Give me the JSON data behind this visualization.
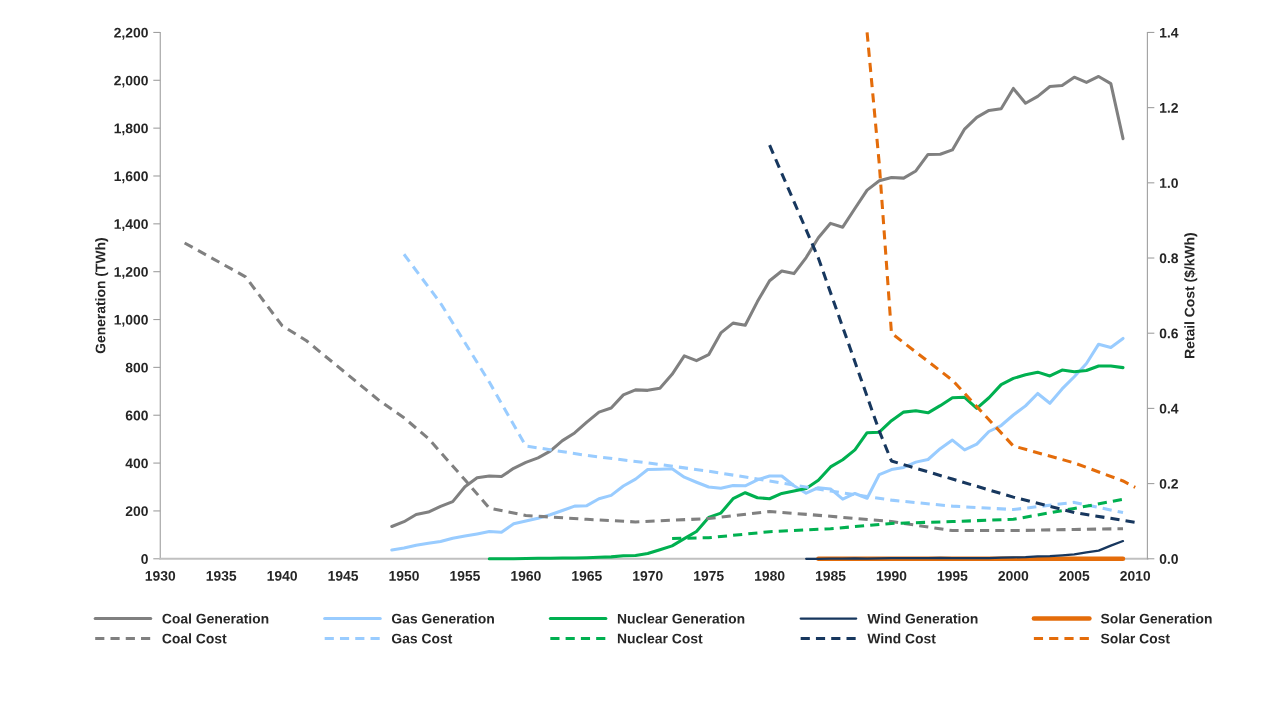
{
  "chart_data": {
    "type": "line",
    "ylabel": "Generation (TWh)",
    "y2label": "Retail Cost ($/kWh)",
    "xlim": [
      1930,
      2011
    ],
    "xticks": [
      1930,
      1935,
      1940,
      1945,
      1950,
      1955,
      1960,
      1965,
      1970,
      1975,
      1980,
      1985,
      1990,
      1995,
      2000,
      2005,
      2010
    ],
    "ylim": [
      0,
      2200
    ],
    "yticks": [
      0,
      200,
      400,
      600,
      800,
      {
        "value": 1000,
        "label": "1,000"
      },
      {
        "value": 1200,
        "label": "1,200"
      },
      {
        "value": 1400,
        "label": "1,400"
      },
      {
        "value": 1600,
        "label": "1,600"
      },
      {
        "value": 1800,
        "label": "1,800"
      },
      {
        "value": 2000,
        "label": "2,000"
      },
      {
        "value": 2200,
        "label": "2,200"
      }
    ],
    "y2lim": [
      0,
      1.4
    ],
    "y2ticks": [
      {
        "value": 0,
        "label": "0.0"
      },
      0.2,
      0.4,
      0.6,
      0.8,
      {
        "value": 1,
        "label": "1.0"
      },
      1.2,
      1.4
    ],
    "grid": false,
    "legend": "bottom",
    "series": [
      {
        "name": "Coal Generation",
        "color": "#808080",
        "line_style": "solid",
        "x": [
          1949,
          1950,
          1951,
          1952,
          1953,
          1954,
          1955,
          1956,
          1957,
          1958,
          1959,
          1960,
          1961,
          1962,
          1963,
          1964,
          1965,
          1966,
          1967,
          1968,
          1969,
          1970,
          1971,
          1972,
          1973,
          1974,
          1975,
          1976,
          1977,
          1978,
          1979,
          1980,
          1981,
          1982,
          1983,
          1984,
          1985,
          1986,
          1987,
          1988,
          1989,
          1990,
          1991,
          1992,
          1993,
          1994,
          1995,
          1996,
          1997,
          1998,
          1999,
          2000,
          2001,
          2002,
          2003,
          2004,
          2005,
          2006,
          2007,
          2008,
          2009
        ],
        "values": [
          135,
          155,
          185,
          195,
          219,
          239,
          301,
          339,
          346,
          344,
          378,
          403,
          422,
          450,
          494,
          526,
          571,
          613,
          630,
          685,
          706,
          704,
          713,
          771,
          848,
          828,
          853,
          944,
          985,
          976,
          1075,
          1162,
          1203,
          1192,
          1259,
          1342,
          1402,
          1386,
          1464,
          1541,
          1580,
          1594,
          1591,
          1621,
          1690,
          1691,
          1709,
          1796,
          1845,
          1874,
          1881,
          1966,
          1904,
          1933,
          1974,
          1978,
          2013,
          1991,
          2016,
          1986,
          1756
        ]
      },
      {
        "name": "Gas Generation",
        "color": "#99ccff",
        "line_style": "solid",
        "x": [
          1949,
          1950,
          1951,
          1952,
          1953,
          1954,
          1955,
          1956,
          1957,
          1958,
          1959,
          1960,
          1961,
          1962,
          1963,
          1964,
          1965,
          1966,
          1967,
          1968,
          1969,
          1970,
          1971,
          1972,
          1973,
          1974,
          1975,
          1976,
          1977,
          1978,
          1979,
          1980,
          1981,
          1982,
          1983,
          1984,
          1985,
          1986,
          1987,
          1988,
          1989,
          1990,
          1991,
          1992,
          1993,
          1994,
          1995,
          1996,
          1997,
          1998,
          1999,
          2000,
          2001,
          2002,
          2003,
          2004,
          2005,
          2006,
          2007,
          2008,
          2009
        ],
        "values": [
          37,
          45,
          57,
          65,
          72,
          86,
          95,
          104,
          114,
          111,
          146,
          158,
          169,
          184,
          202,
          220,
          222,
          251,
          265,
          304,
          333,
          373,
          374,
          376,
          341,
          320,
          300,
          295,
          306,
          305,
          330,
          346,
          346,
          305,
          274,
          297,
          292,
          249,
          273,
          253,
          352,
          373,
          382,
          404,
          415,
          460,
          496,
          455,
          479,
          532,
          557,
          601,
          639,
          691,
          650,
          710,
          761,
          816,
          897,
          883,
          921
        ]
      },
      {
        "name": "Nuclear Generation",
        "color": "#00b050",
        "line_style": "solid",
        "x": [
          1957,
          1958,
          1959,
          1960,
          1961,
          1962,
          1963,
          1964,
          1965,
          1966,
          1967,
          1968,
          1969,
          1970,
          1971,
          1972,
          1973,
          1974,
          1975,
          1976,
          1977,
          1978,
          1979,
          1980,
          1981,
          1982,
          1983,
          1984,
          1985,
          1986,
          1987,
          1988,
          1989,
          1990,
          1991,
          1992,
          1993,
          1994,
          1995,
          1996,
          1997,
          1998,
          1999,
          2000,
          2001,
          2002,
          2003,
          2004,
          2005,
          2006,
          2007,
          2008,
          2009
        ],
        "values": [
          0,
          0,
          0,
          1,
          2,
          2,
          3,
          3,
          4,
          6,
          8,
          13,
          14,
          22,
          38,
          54,
          84,
          114,
          173,
          191,
          251,
          276,
          255,
          251,
          273,
          283,
          294,
          328,
          384,
          414,
          455,
          527,
          529,
          577,
          613,
          619,
          610,
          640,
          673,
          675,
          629,
          673,
          728,
          754,
          769,
          780,
          764,
          789,
          782,
          787,
          806,
          806,
          799
        ]
      },
      {
        "name": "Wind Generation",
        "color": "#17375e",
        "line_style": "solid",
        "x": [
          1983,
          1984,
          1985,
          1986,
          1987,
          1988,
          1989,
          1990,
          1991,
          1992,
          1993,
          1994,
          1995,
          1996,
          1997,
          1998,
          1999,
          2000,
          2001,
          2002,
          2003,
          2004,
          2005,
          2006,
          2007,
          2008,
          2009
        ],
        "values": [
          0,
          0,
          1,
          1,
          2,
          1,
          2,
          3,
          3,
          3,
          3,
          4,
          3,
          3,
          3,
          3,
          5,
          6,
          7,
          10,
          11,
          14,
          18,
          27,
          34,
          55,
          74
        ]
      },
      {
        "name": "Solar Generation",
        "color": "#e46c0a",
        "line_style": "solid",
        "x": [
          1984,
          1985,
          1986,
          1987,
          1988,
          1989,
          1990,
          1991,
          1992,
          1993,
          1994,
          1995,
          1996,
          1997,
          1998,
          1999,
          2000,
          2001,
          2002,
          2003,
          2004,
          2005,
          2006,
          2007,
          2008,
          2009
        ],
        "values": [
          0,
          0,
          0,
          0,
          0,
          0,
          0,
          0,
          0,
          0,
          0,
          0,
          0,
          0,
          0,
          0,
          0,
          0,
          0,
          0,
          0,
          0,
          0,
          0,
          0,
          0
        ]
      },
      {
        "name": "Coal Cost",
        "color": "#808080",
        "line_style": "dashed",
        "axis": "y2",
        "x": [
          1932,
          1937,
          1940,
          1942,
          1945,
          1948,
          1950,
          1952,
          1955,
          1957,
          1960,
          1965,
          1969,
          1975,
          1980,
          1985,
          1990,
          1995,
          2000,
          2005,
          2009
        ],
        "values": [
          0.84,
          0.75,
          0.62,
          0.58,
          0.5,
          0.42,
          0.375,
          0.32,
          0.21,
          0.135,
          0.115,
          0.105,
          0.098,
          0.107,
          0.126,
          0.113,
          0.099,
          0.075,
          0.075,
          0.078,
          0.08
        ]
      },
      {
        "name": "Gas Cost",
        "color": "#99ccff",
        "line_style": "dashed",
        "axis": "y2",
        "x": [
          1950,
          1953,
          1957,
          1960,
          1965,
          1970,
          1975,
          1980,
          1985,
          1990,
          1995,
          2000,
          2005,
          2009
        ],
        "values": [
          0.81,
          0.68,
          0.47,
          0.3,
          0.275,
          0.255,
          0.233,
          0.207,
          0.18,
          0.156,
          0.14,
          0.131,
          0.15,
          0.123
        ]
      },
      {
        "name": "Nuclear Cost",
        "color": "#00b050",
        "line_style": "dashed",
        "axis": "y2",
        "x": [
          1972,
          1975,
          1980,
          1985,
          1990,
          1995,
          2000,
          2005,
          2009
        ],
        "values": [
          0.054,
          0.056,
          0.072,
          0.08,
          0.094,
          0.099,
          0.105,
          0.134,
          0.158
        ]
      },
      {
        "name": "Wind Cost",
        "color": "#17375e",
        "line_style": "dashed",
        "axis": "y2",
        "x": [
          1980,
          1984,
          1989,
          1990,
          1995,
          2000,
          2005,
          2010
        ],
        "values": [
          1.1,
          0.8,
          0.34,
          0.26,
          0.212,
          0.164,
          0.123,
          0.097
        ]
      },
      {
        "name": "Solar Cost",
        "color": "#e46c0a",
        "line_style": "dashed",
        "axis": "y2",
        "x": [
          1988,
          1989,
          1990,
          1995,
          2000,
          2005,
          2009,
          2010
        ],
        "values": [
          1.4,
          1.05,
          0.6,
          0.475,
          0.3,
          0.255,
          0.207,
          0.19
        ]
      }
    ]
  }
}
